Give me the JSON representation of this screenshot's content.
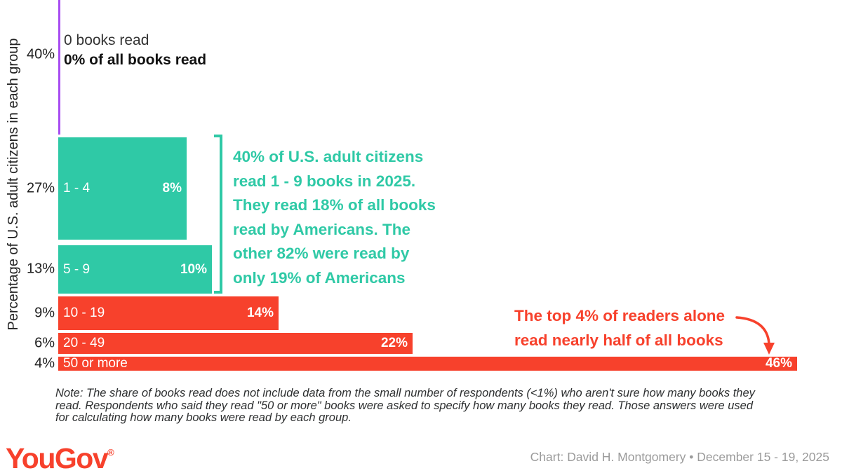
{
  "chart_data": {
    "type": "bar",
    "variant": "marimekko-horizontal",
    "ylabel": "Percentage of U.S. adult citizens in each group",
    "bar_width_meaning": "% of all books read",
    "bar_height_meaning": "% of U.S. adult citizens",
    "rows": [
      {
        "group": "0 books read",
        "pct_citizens": 40,
        "pct_books": 0,
        "tick_label": "40%",
        "group_label": "0 books read",
        "value_label": "0% of all books read",
        "color_key": "purple"
      },
      {
        "group": "1 - 4",
        "pct_citizens": 27,
        "pct_books": 8,
        "tick_label": "27%",
        "group_label": "1 - 4",
        "value_label": "8%",
        "color_key": "teal"
      },
      {
        "group": "5 - 9",
        "pct_citizens": 13,
        "pct_books": 10,
        "tick_label": "13%",
        "group_label": "5 - 9",
        "value_label": "10%",
        "color_key": "teal"
      },
      {
        "group": "10 - 19",
        "pct_citizens": 9,
        "pct_books": 14,
        "tick_label": "9%",
        "group_label": "10 - 19",
        "value_label": "14%",
        "color_key": "red"
      },
      {
        "group": "20 - 49",
        "pct_citizens": 6,
        "pct_books": 22,
        "tick_label": "6%",
        "group_label": "20 - 49",
        "value_label": "22%",
        "color_key": "red"
      },
      {
        "group": "50 or more",
        "pct_citizens": 4,
        "pct_books": 46,
        "tick_label": "4%",
        "group_label": "50 or more",
        "value_label": "46%",
        "color_key": "red"
      }
    ]
  },
  "annotations": {
    "teal_note": "40% of U.S. adult citizens\nread 1 - 9 books in 2025.\nThey read 18% of all books\nread by Americans. The\nother 82% were read by\nonly 19% of Americans",
    "red_note": "The top 4% of readers alone\nread nearly half of all books"
  },
  "note": "Note: The share of books read does not include data from the small number of respondents (<1%) who aren't sure how many books they\nread. Respondents who said they read \"50 or more\" books were asked to specify how many books they read. Those answers were used\nfor calculating how many books were read by each group.",
  "footer": {
    "logo_text": "YouGov",
    "logo_reg": "®",
    "credit": "Chart: David H. Montgomery • December 15 - 19, 2025"
  },
  "colors": {
    "teal": "#2FC9A6",
    "red": "#F7412C",
    "purple": "#A84DF1"
  }
}
